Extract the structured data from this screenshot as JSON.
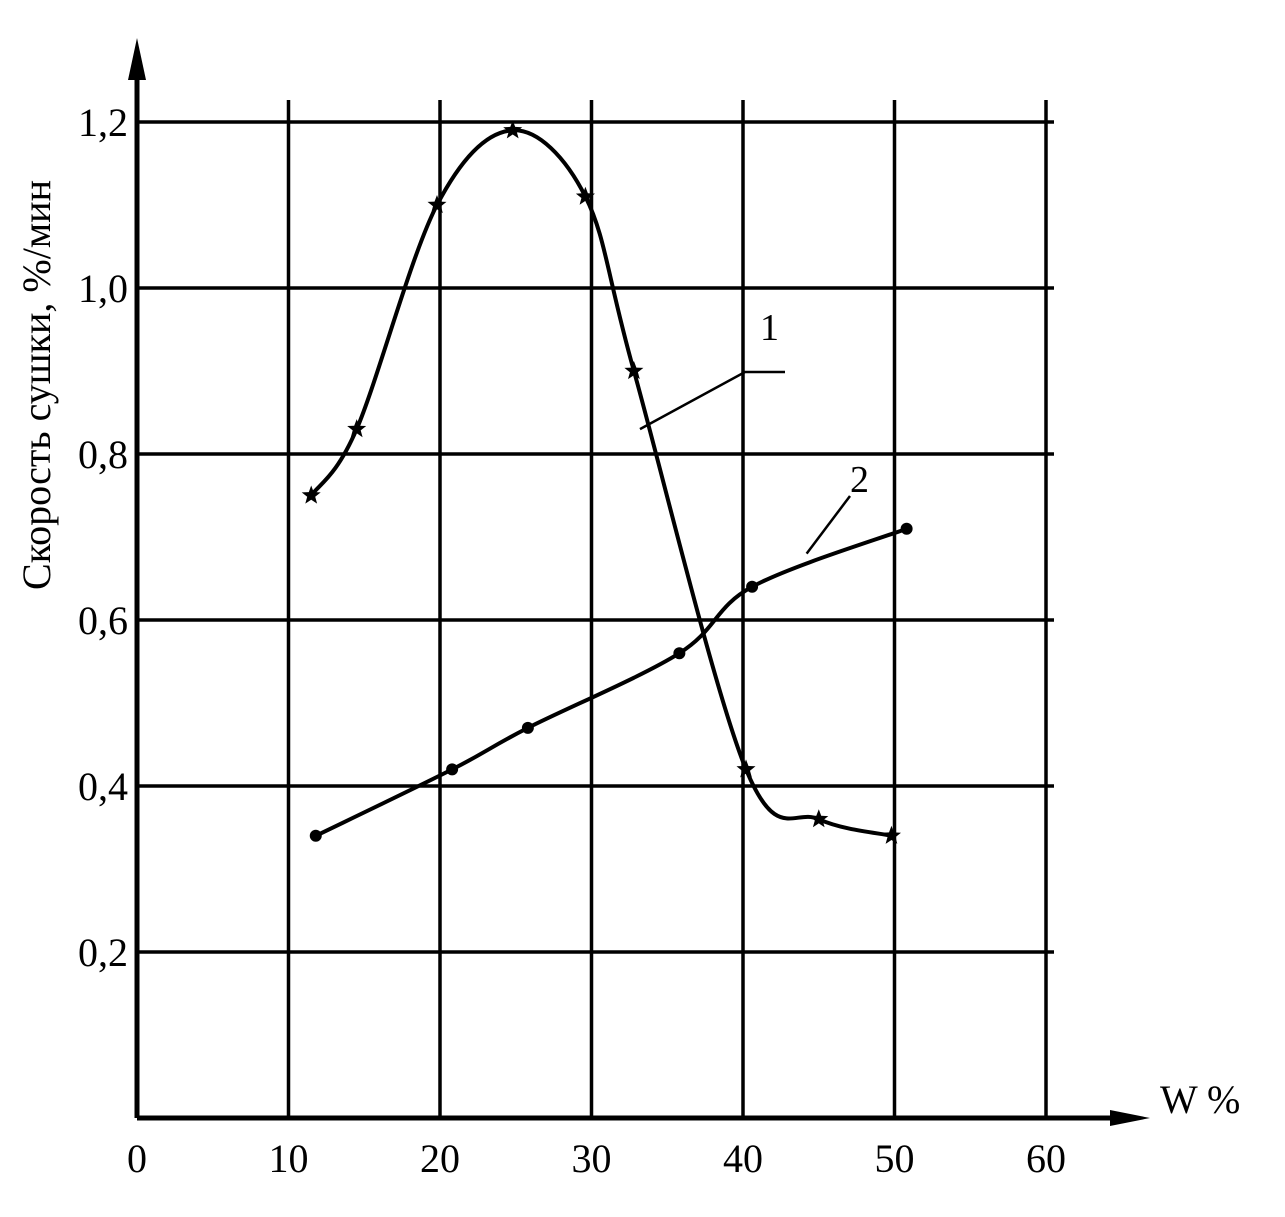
{
  "chart_data": {
    "type": "line",
    "xlabel": "W %",
    "ylabel": "Скорость сушки, %/мин",
    "xlim": [
      0,
      60
    ],
    "ylim": [
      0,
      1.2
    ],
    "x_ticks": [
      {
        "value": 0,
        "label": "0"
      },
      {
        "value": 10,
        "label": "10"
      },
      {
        "value": 20,
        "label": "20"
      },
      {
        "value": 30,
        "label": "30"
      },
      {
        "value": 40,
        "label": "40"
      },
      {
        "value": 50,
        "label": "50"
      },
      {
        "value": 60,
        "label": "60"
      }
    ],
    "y_ticks": [
      {
        "value": 0.2,
        "label": "0,2"
      },
      {
        "value": 0.4,
        "label": "0,4"
      },
      {
        "value": 0.6,
        "label": "0,6"
      },
      {
        "value": 0.8,
        "label": "0,8"
      },
      {
        "value": 1.0,
        "label": "1,0"
      },
      {
        "value": 1.2,
        "label": "1,2"
      }
    ],
    "grid": true,
    "series": [
      {
        "name": "1",
        "marker": "star",
        "points": [
          {
            "x": 11.5,
            "y": 0.75
          },
          {
            "x": 14.5,
            "y": 0.83
          },
          {
            "x": 19.8,
            "y": 1.1
          },
          {
            "x": 24.8,
            "y": 1.19
          },
          {
            "x": 29.6,
            "y": 1.11
          },
          {
            "x": 32.8,
            "y": 0.9
          },
          {
            "x": 40.2,
            "y": 0.42
          },
          {
            "x": 45.0,
            "y": 0.36
          },
          {
            "x": 49.8,
            "y": 0.34
          }
        ]
      },
      {
        "name": "2",
        "marker": "dot",
        "points": [
          {
            "x": 11.8,
            "y": 0.34
          },
          {
            "x": 20.8,
            "y": 0.42
          },
          {
            "x": 25.8,
            "y": 0.47
          },
          {
            "x": 35.8,
            "y": 0.56
          },
          {
            "x": 40.6,
            "y": 0.64
          },
          {
            "x": 50.8,
            "y": 0.71
          }
        ]
      }
    ]
  }
}
